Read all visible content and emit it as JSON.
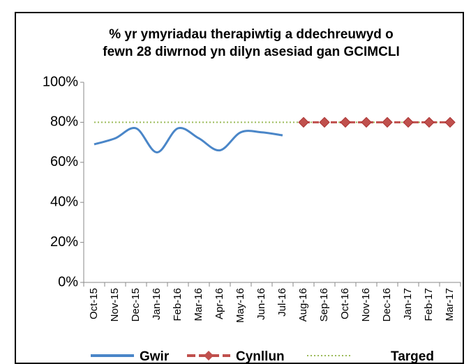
{
  "chart_data": {
    "type": "line",
    "title": "% yr ymyriadau therapiwtig a ddechreuwyd o\nfewn 28 diwrnod yn dilyn asesiad gan GCIMCLI",
    "categories": [
      "Oct-15",
      "Nov-15",
      "Dec-15",
      "Jan-16",
      "Feb-16",
      "Mar-16",
      "Apr-16",
      "May-16",
      "Jun-16",
      "Jul-16",
      "Aug-16",
      "Sep-16",
      "Oct-16",
      "Nov-16",
      "Dec-16",
      "Jan-17",
      "Feb-17",
      "Mar-17"
    ],
    "series": [
      {
        "name": "Gwir",
        "color": "#4a86c8",
        "style": "solid",
        "values": [
          69,
          72,
          77,
          65,
          77,
          72,
          66,
          75,
          75,
          73.5,
          null,
          null,
          null,
          null,
          null,
          null,
          null,
          null
        ]
      },
      {
        "name": "Cynllun",
        "color": "#c0504d",
        "style": "dashed-diamond",
        "values": [
          null,
          null,
          null,
          null,
          null,
          null,
          null,
          null,
          null,
          null,
          80,
          80,
          80,
          80,
          80,
          80,
          80,
          80
        ]
      },
      {
        "name": "Targed",
        "color": "#9bbb59",
        "style": "dotted",
        "values": [
          80,
          80,
          80,
          80,
          80,
          80,
          80,
          80,
          80,
          80,
          80,
          80,
          80,
          80,
          80,
          80,
          80,
          80
        ]
      }
    ],
    "ylim": [
      0,
      100
    ],
    "yticks": [
      {
        "value": 0,
        "label": "0%"
      },
      {
        "value": 20,
        "label": "20%"
      },
      {
        "value": 40,
        "label": "40%"
      },
      {
        "value": 60,
        "label": "60%"
      },
      {
        "value": 80,
        "label": "80%"
      },
      {
        "value": 100,
        "label": "100%"
      }
    ],
    "legend": "bottom"
  }
}
